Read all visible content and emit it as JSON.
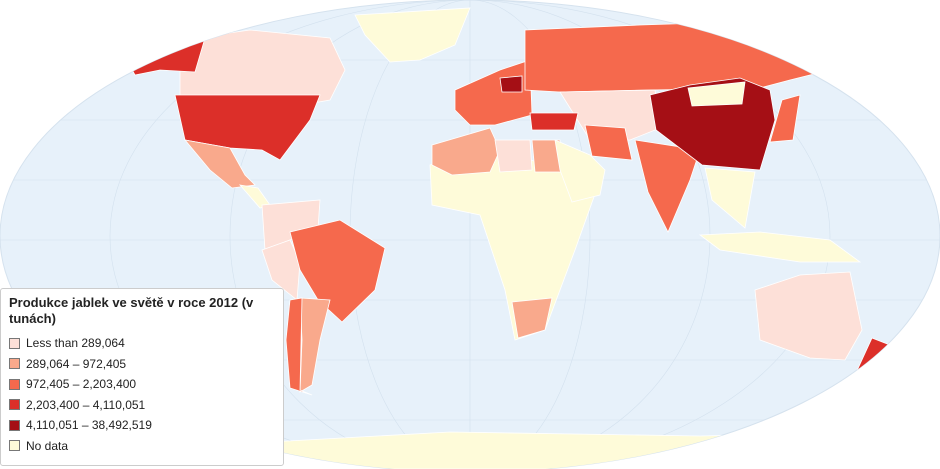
{
  "legend": {
    "title": "Produkce jablek ve světě v roce 2012 (v tunách)",
    "items": [
      {
        "label": "Less than 289,064",
        "color": "#fde0d8"
      },
      {
        "label": "289,064 – 972,405",
        "color": "#f9a98c"
      },
      {
        "label": "972,405 – 2,203,400",
        "color": "#f5694d"
      },
      {
        "label": "2,203,400 – 4,110,051",
        "color": "#dc2f29"
      },
      {
        "label": "4,110,051 – 38,492,519",
        "color": "#a50f15"
      },
      {
        "label": "No data",
        "color": "#fefbd9"
      }
    ]
  }
}
